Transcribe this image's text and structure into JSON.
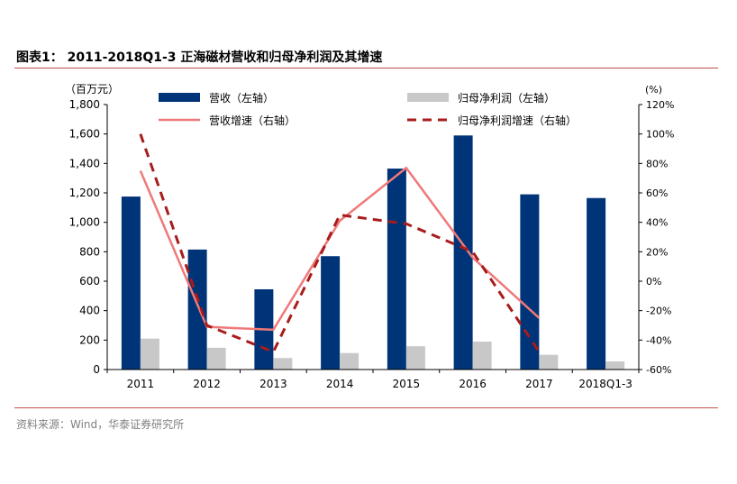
{
  "title": "图表1：  2011-2018Q1-3 正海磁材营收和归母净利润及其增速",
  "source": "资料来源：Wind，华泰证券研究所",
  "chart_data": {
    "type": "bar",
    "categories": [
      "2011",
      "2012",
      "2013",
      "2014",
      "2015",
      "2016",
      "2017",
      "2018Q1-3"
    ],
    "left_axis": {
      "unit_label": "（百万元）",
      "ylim": [
        0,
        1800
      ],
      "ticks": [
        0,
        200,
        400,
        600,
        800,
        1000,
        1200,
        1400,
        1600,
        1800
      ],
      "tick_labels": [
        "0",
        "200",
        "400",
        "600",
        "800",
        "1,000",
        "1,200",
        "1,400",
        "1,600",
        "1,800"
      ]
    },
    "right_axis": {
      "unit_label": "(%)",
      "ylim": [
        -60,
        120
      ],
      "ticks": [
        -60,
        -40,
        -20,
        0,
        20,
        40,
        60,
        80,
        100,
        120
      ],
      "tick_labels": [
        "-60%",
        "-40%",
        "-20%",
        "0%",
        "20%",
        "40%",
        "60%",
        "80%",
        "100%",
        "120%"
      ]
    },
    "series": [
      {
        "name": "营收（左轴）",
        "type": "bar",
        "axis": "left",
        "color": "#003478",
        "values": [
          1175,
          815,
          545,
          770,
          1365,
          1590,
          1190,
          1165
        ]
      },
      {
        "name": "归母净利润（左轴）",
        "type": "bar",
        "axis": "left",
        "color": "#c8c8c8",
        "values": [
          210,
          148,
          78,
          112,
          158,
          190,
          100,
          55
        ]
      },
      {
        "name": "营收增速（右轴）",
        "type": "line",
        "axis": "right",
        "color": "#f07878",
        "dash": "solid",
        "values": [
          75,
          -31,
          -33,
          41,
          77,
          16,
          -25,
          null
        ]
      },
      {
        "name": "归母净利润增速（右轴）",
        "type": "line",
        "axis": "right",
        "color": "#a81c1c",
        "dash": "dashed",
        "values": [
          100,
          -30,
          -48,
          45,
          39,
          20,
          -48,
          null
        ]
      }
    ],
    "legend_position": "top",
    "grid": false
  }
}
